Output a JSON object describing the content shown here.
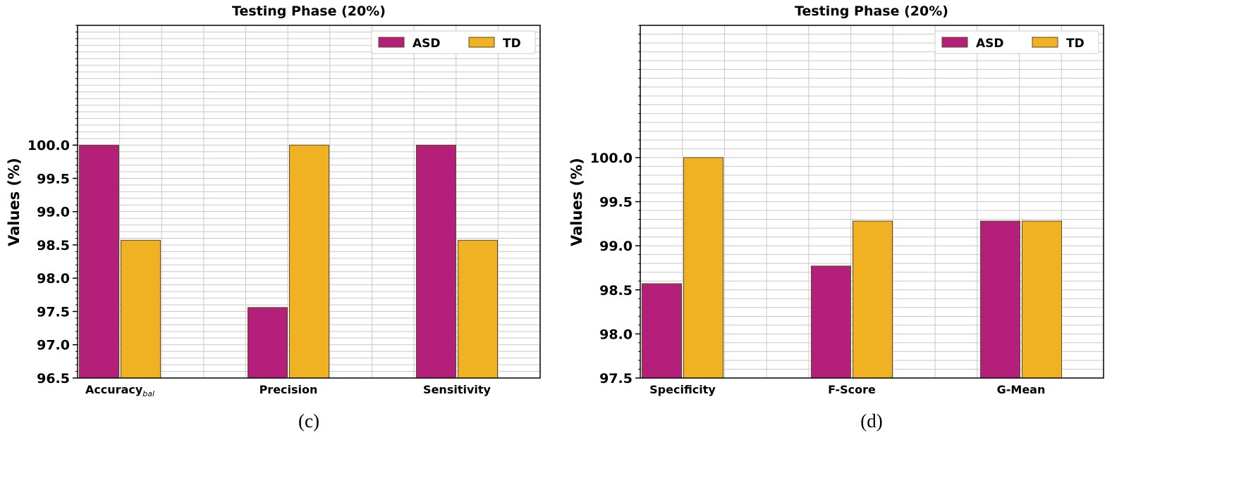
{
  "chart_data": [
    {
      "type": "bar",
      "title": "Testing Phase (20%)",
      "ylabel": "Values (%)",
      "xlabel": "",
      "ylim": [
        96.5,
        101.8
      ],
      "yticks": [
        "96.5",
        "97.0",
        "97.5",
        "98.0",
        "98.5",
        "99.0",
        "99.5",
        "100.0"
      ],
      "categories": [
        {
          "label": "Accuracy",
          "subscript": "bal"
        },
        {
          "label": "Precision",
          "subscript": ""
        },
        {
          "label": "Sensitivity",
          "subscript": ""
        }
      ],
      "series": [
        {
          "name": "ASD",
          "color": "#b41f79",
          "values": [
            100.0,
            97.56,
            100.0
          ]
        },
        {
          "name": "TD",
          "color": "#f0b123",
          "values": [
            98.57,
            100.0,
            98.57
          ]
        }
      ],
      "legend": "top-right",
      "grid": true,
      "caption": "(c)"
    },
    {
      "type": "bar",
      "title": "Testing Phase (20%)",
      "ylabel": "Values (%)",
      "xlabel": "",
      "ylim": [
        97.5,
        101.5
      ],
      "yticks": [
        "97.5",
        "98.0",
        "98.5",
        "99.0",
        "99.5",
        "100.0"
      ],
      "categories": [
        {
          "label": "Specificity",
          "subscript": ""
        },
        {
          "label": "F-Score",
          "subscript": ""
        },
        {
          "label": "G-Mean",
          "subscript": ""
        }
      ],
      "series": [
        {
          "name": "ASD",
          "color": "#b41f79",
          "values": [
            98.57,
            98.77,
            99.28
          ]
        },
        {
          "name": "TD",
          "color": "#f0b123",
          "values": [
            100.0,
            99.28,
            99.28
          ]
        }
      ],
      "legend": "top-right",
      "grid": true,
      "caption": "(d)"
    }
  ]
}
